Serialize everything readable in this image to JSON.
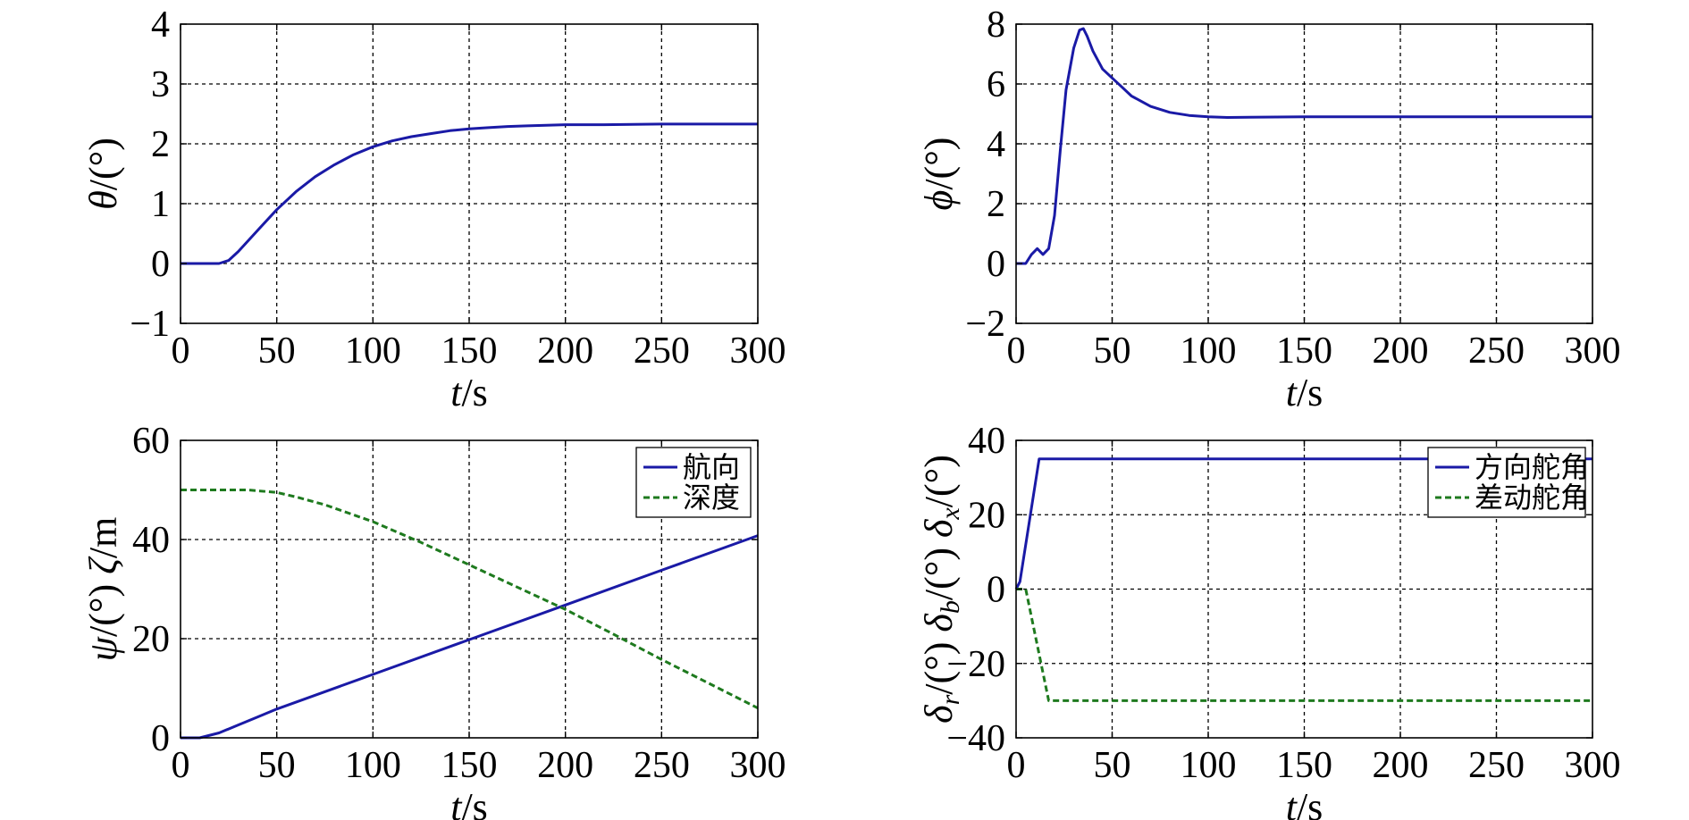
{
  "colors": {
    "blue": "#1a1aa6",
    "green": "#1e7a1e",
    "axis": "#000000",
    "grid": "#000000"
  },
  "chart_data": [
    {
      "id": "theta",
      "type": "line",
      "ylabel_sym": "θ",
      "ylabel_rest": "/(°)",
      "xlabel_sym": "t",
      "xlabel_rest": "/s",
      "xlim": [
        0,
        300
      ],
      "ylim": [
        -1,
        4
      ],
      "xticks": [
        0,
        50,
        100,
        150,
        200,
        250,
        300
      ],
      "yticks": [
        -1,
        0,
        1,
        2,
        3,
        4
      ],
      "xtick_labels": [
        "0",
        "50",
        "100",
        "150",
        "200",
        "250",
        "300"
      ],
      "ytick_labels": [
        "−1",
        "0",
        "1",
        "2",
        "3",
        "4"
      ],
      "hgrid": [
        0,
        1,
        2,
        3
      ],
      "grid": true,
      "series": [
        {
          "name": "",
          "color": "blue",
          "dash": false,
          "x": [
            0,
            10,
            20,
            25,
            30,
            40,
            50,
            60,
            70,
            80,
            90,
            100,
            110,
            120,
            130,
            140,
            150,
            160,
            170,
            180,
            190,
            200,
            220,
            250,
            300
          ],
          "y": [
            0,
            0,
            0,
            0.05,
            0.2,
            0.55,
            0.9,
            1.2,
            1.45,
            1.65,
            1.82,
            1.95,
            2.05,
            2.12,
            2.17,
            2.22,
            2.25,
            2.27,
            2.29,
            2.3,
            2.31,
            2.32,
            2.32,
            2.33,
            2.33
          ]
        }
      ]
    },
    {
      "id": "phi",
      "type": "line",
      "ylabel_sym": "ϕ",
      "ylabel_rest": "/(°)",
      "xlabel_sym": "t",
      "xlabel_rest": "/s",
      "xlim": [
        0,
        300
      ],
      "ylim": [
        -2,
        8
      ],
      "xticks": [
        0,
        50,
        100,
        150,
        200,
        250,
        300
      ],
      "yticks": [
        -2,
        0,
        2,
        4,
        6,
        8
      ],
      "xtick_labels": [
        "0",
        "50",
        "100",
        "150",
        "200",
        "250",
        "300"
      ],
      "ytick_labels": [
        "−2",
        "0",
        "2",
        "4",
        "6",
        "8"
      ],
      "hgrid": [
        0,
        2,
        4,
        6
      ],
      "grid": true,
      "series": [
        {
          "name": "",
          "color": "blue",
          "dash": false,
          "x": [
            0,
            5,
            8,
            11,
            14,
            17,
            20,
            23,
            26,
            30,
            33,
            35,
            37,
            40,
            45,
            50,
            55,
            60,
            70,
            80,
            90,
            100,
            110,
            150,
            200,
            300
          ],
          "y": [
            0,
            0,
            0.3,
            0.5,
            0.3,
            0.5,
            1.6,
            3.8,
            5.8,
            7.2,
            7.8,
            7.85,
            7.6,
            7.1,
            6.5,
            6.2,
            5.9,
            5.6,
            5.25,
            5.05,
            4.95,
            4.9,
            4.88,
            4.9,
            4.9,
            4.9
          ]
        }
      ]
    },
    {
      "id": "psi-zeta",
      "type": "line",
      "ylabel_sym": "ψ",
      "ylabel_rest": "/(°) ",
      "ylabel_sym2": "ζ",
      "ylabel_rest2": "/m",
      "xlabel_sym": "t",
      "xlabel_rest": "/s",
      "xlim": [
        0,
        300
      ],
      "ylim": [
        0,
        60
      ],
      "xticks": [
        0,
        50,
        100,
        150,
        200,
        250,
        300
      ],
      "yticks": [
        0,
        20,
        40,
        60
      ],
      "xtick_labels": [
        "0",
        "50",
        "100",
        "150",
        "200",
        "250",
        "300"
      ],
      "ytick_labels": [
        "0",
        "20",
        "40",
        "60"
      ],
      "hgrid": [
        20,
        40
      ],
      "grid": true,
      "legend_loc": "top-right",
      "series": [
        {
          "name": "航向",
          "color": "blue",
          "dash": false,
          "x": [
            0,
            10,
            20,
            30,
            40,
            50,
            100,
            150,
            200,
            250,
            300
          ],
          "y": [
            0,
            0,
            1,
            2.6,
            4.2,
            5.8,
            12.8,
            19.8,
            26.8,
            33.8,
            40.8
          ]
        },
        {
          "name": "深度",
          "color": "green",
          "dash": true,
          "x": [
            0,
            20,
            35,
            50,
            60,
            75,
            100,
            125,
            150,
            175,
            200,
            225,
            250,
            275,
            300
          ],
          "y": [
            50,
            50,
            50,
            49.5,
            48.6,
            47,
            43.6,
            39.4,
            34.9,
            30.4,
            25.9,
            20.9,
            15.8,
            10.9,
            6
          ]
        }
      ]
    },
    {
      "id": "deltas",
      "type": "line",
      "ylabel_parts": [
        {
          "sym": "δ",
          "sub": "r",
          "rest": "/(°) "
        },
        {
          "sym": "δ",
          "sub": "b",
          "rest": "/(°) "
        },
        {
          "sym": "δ",
          "sub": "x",
          "rest": "/(°)"
        }
      ],
      "xlabel_sym": "t",
      "xlabel_rest": "/s",
      "xlim": [
        0,
        300
      ],
      "ylim": [
        -40,
        40
      ],
      "xticks": [
        0,
        50,
        100,
        150,
        200,
        250,
        300
      ],
      "yticks": [
        -40,
        -20,
        0,
        20,
        40
      ],
      "xtick_labels": [
        "0",
        "50",
        "100",
        "150",
        "200",
        "250",
        "300"
      ],
      "ytick_labels": [
        "−40",
        "−20",
        "0",
        "20",
        "40"
      ],
      "hgrid": [
        -20,
        0,
        20
      ],
      "grid": true,
      "legend_loc": "top-right",
      "series": [
        {
          "name": "方向舵角",
          "color": "blue",
          "dash": false,
          "x": [
            0,
            2,
            12,
            300
          ],
          "y": [
            0,
            2,
            35,
            35
          ]
        },
        {
          "name": "差动舵角",
          "color": "green",
          "dash": true,
          "x": [
            0,
            5,
            17,
            300
          ],
          "y": [
            0,
            0,
            -30,
            -30
          ]
        }
      ]
    }
  ]
}
